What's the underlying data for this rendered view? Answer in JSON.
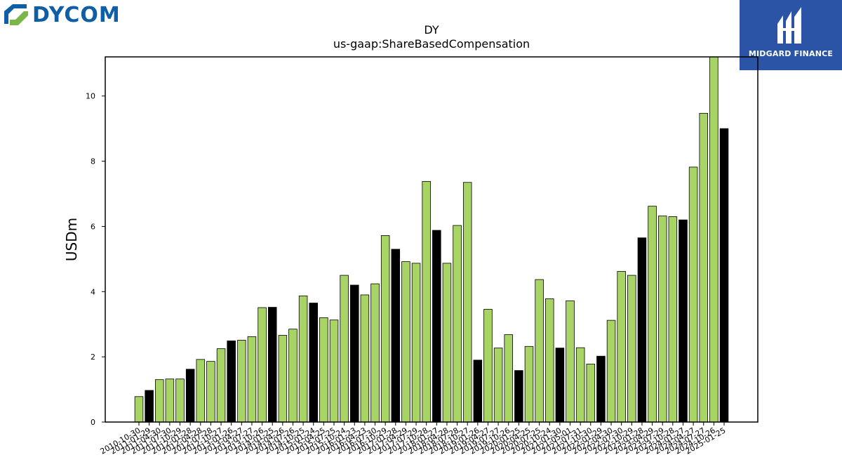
{
  "logos": {
    "left_text": "DYCOM",
    "right_text": "MIDGARD FINANCE"
  },
  "colors": {
    "bar_light": "#a8d465",
    "bar_dark": "#000000",
    "dycom_blue": "#0f5fa6",
    "dycom_green": "#7ab648",
    "midgard_bg": "#2b54a6"
  },
  "chart_data": {
    "type": "bar",
    "title": "DY",
    "subtitle": "us-gaap:ShareBasedCompensation",
    "xlabel": "",
    "ylabel": "USDm",
    "ylim": [
      0,
      11.2
    ],
    "yticks": [
      0,
      2,
      4,
      6,
      8,
      10
    ],
    "grid": false,
    "categories": [
      "2010-10-30",
      "2011-01-29",
      "2011-04-30",
      "2011-07-30",
      "2011-10-29",
      "2012-01-28",
      "2012-04-28",
      "2012-07-28",
      "2012-10-27",
      "2013-01-26",
      "2013-04-27",
      "2013-07-27",
      "2013-10-26",
      "2014-01-25",
      "2014-04-26",
      "2014-07-26",
      "2014-10-25",
      "2015-01-24",
      "2015-04-25",
      "2015-07-25",
      "2015-10-24",
      "2016-01-23",
      "2016-04-23",
      "2016-07-30",
      "2016-10-29",
      "2017-01-28",
      "2017-04-29",
      "2017-07-29",
      "2017-10-28",
      "2018-01-27",
      "2018-04-28",
      "2018-07-28",
      "2018-10-27",
      "2019-01-26",
      "2019-04-27",
      "2019-07-27",
      "2019-10-26",
      "2020-01-25",
      "2020-04-25",
      "2020-07-25",
      "2020-10-24",
      "2021-01-30",
      "2021-05-01",
      "2021-07-31",
      "2021-10-30",
      "2022-01-29",
      "2022-04-30",
      "2022-07-30",
      "2022-10-29",
      "2023-01-28",
      "2023-04-29",
      "2023-07-29",
      "2023-10-28",
      "2024-01-27",
      "2024-04-27",
      "2024-07-27",
      "2024-10-26",
      "2025-01-25"
    ],
    "values": [
      0.78,
      0.97,
      1.3,
      1.32,
      1.32,
      1.62,
      1.92,
      1.86,
      2.25,
      2.49,
      2.51,
      2.62,
      3.51,
      3.52,
      2.66,
      2.85,
      3.87,
      3.65,
      3.2,
      3.13,
      4.5,
      4.2,
      3.9,
      4.24,
      5.72,
      5.3,
      4.92,
      4.87,
      7.38,
      5.88,
      4.87,
      6.03,
      7.35,
      1.9,
      3.46,
      2.27,
      2.68,
      1.58,
      2.32,
      4.37,
      3.78,
      2.27,
      3.72,
      2.28,
      1.78,
      2.02,
      3.12,
      4.62,
      4.5,
      5.65,
      6.62,
      6.32,
      6.3,
      6.2,
      7.82,
      9.47,
      11.25,
      9.0
    ],
    "highlight": [
      false,
      true,
      false,
      false,
      false,
      true,
      false,
      false,
      false,
      true,
      false,
      false,
      false,
      true,
      false,
      false,
      false,
      true,
      false,
      false,
      false,
      true,
      false,
      false,
      false,
      true,
      false,
      false,
      false,
      true,
      false,
      false,
      false,
      true,
      false,
      false,
      false,
      true,
      false,
      false,
      false,
      true,
      false,
      false,
      false,
      true,
      false,
      false,
      false,
      true,
      false,
      false,
      false,
      true,
      false,
      false,
      false,
      true
    ]
  }
}
